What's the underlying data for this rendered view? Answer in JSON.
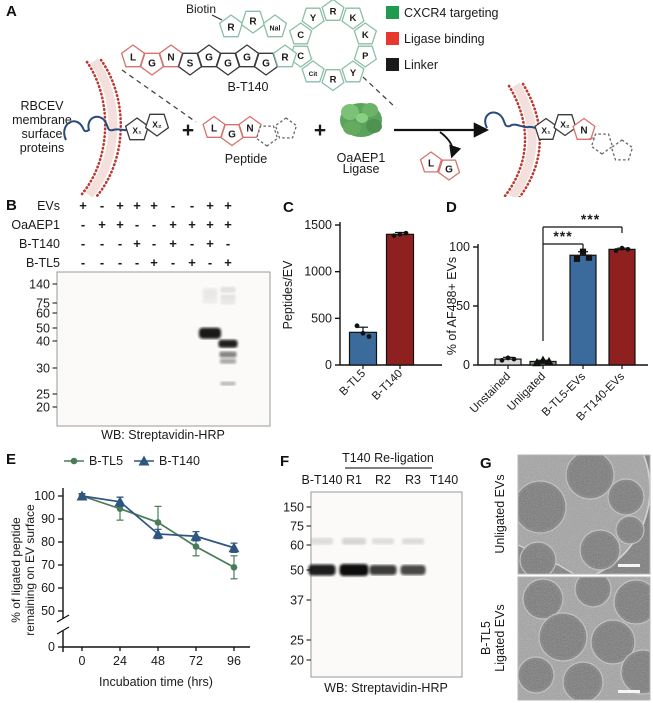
{
  "colors": {
    "accent_green": "#1e9b4d",
    "accent_red": "#e8372c",
    "accent_black": "#1a1a1a",
    "bar_blue": "#3a6b9c",
    "bar_dark_red": "#8e2020",
    "bar_gray": "#d8d8d8",
    "bar_olive": "#7a9b6e",
    "line_green": "#4a7c59",
    "line_blue": "#2f5580",
    "membrane_red": "#bb3a31",
    "protein_blue": "#2b4a7d",
    "pent": {
      "green": {
        "stroke": "#8bbfa6",
        "text": "#1e9b4d"
      },
      "red": {
        "stroke": "#d4736c",
        "text": "#e0352b"
      },
      "black": {
        "stroke": "#3a3a3a",
        "text": "#1a1a1a"
      }
    }
  },
  "panelA": {
    "label": "A",
    "biotin": "Biotin",
    "bt140": "B-T140",
    "membrane_lines": [
      "RBCEV",
      "membrane",
      "surface",
      "proteins"
    ],
    "peptide": "Peptide",
    "ligase_lines": [
      "OaAEP1",
      "Ligase"
    ],
    "plus": "+",
    "legend": [
      {
        "color": "#1e9b4d",
        "label": "CXCR4 targeting"
      },
      {
        "color": "#e8372c",
        "label": "Ligase binding"
      },
      {
        "color": "#1a1a1a",
        "label": "Linker"
      }
    ],
    "top_chain": [
      {
        "t": "R",
        "c": "green"
      },
      {
        "t": "R",
        "c": "green"
      },
      {
        "t": "Nal",
        "c": "green"
      }
    ],
    "linear_chain": [
      {
        "t": "L",
        "c": "red"
      },
      {
        "t": "G",
        "c": "red"
      },
      {
        "t": "N",
        "c": "red"
      },
      {
        "t": "S",
        "c": "black"
      },
      {
        "t": "G",
        "c": "black"
      },
      {
        "t": "G",
        "c": "black"
      },
      {
        "t": "G",
        "c": "black"
      },
      {
        "t": "G",
        "c": "black"
      },
      {
        "t": "R",
        "c": "green"
      }
    ],
    "ring": [
      "C",
      "Y",
      "R",
      "K",
      "K",
      "P",
      "Y",
      "R",
      "Cit",
      "C"
    ],
    "substrate_protein": [
      "X₁",
      "X₂"
    ],
    "peptide_chain": [
      {
        "t": "L",
        "c": "red"
      },
      {
        "t": "G",
        "c": "red"
      },
      {
        "t": "N",
        "c": "red"
      }
    ],
    "released": [
      {
        "t": "L",
        "c": "red"
      },
      {
        "t": "G",
        "c": "red"
      }
    ],
    "product_chain": [
      {
        "t": "X₁",
        "c": "black"
      },
      {
        "t": "X₂",
        "c": "black"
      },
      {
        "t": "N",
        "c": "red"
      }
    ]
  },
  "panelB": {
    "label": "B",
    "rows": [
      {
        "name": "EVs",
        "signs": [
          "+",
          "-",
          "+",
          "+",
          "+",
          "-",
          "-",
          "+",
          "+"
        ]
      },
      {
        "name": "OaAEP1",
        "signs": [
          "-",
          "+",
          "+",
          "-",
          "-",
          "+",
          "+",
          "+",
          "+"
        ]
      },
      {
        "name": "B-T140",
        "signs": [
          "-",
          "-",
          "-",
          "+",
          "-",
          "+",
          "-",
          "+",
          "-"
        ]
      },
      {
        "name": "B-TL5",
        "signs": [
          "-",
          "-",
          "-",
          "-",
          "+",
          "-",
          "+",
          "-",
          "+"
        ]
      }
    ],
    "mw": [
      "140",
      "75",
      "60",
      "50",
      "40",
      "30",
      "25",
      "20"
    ],
    "bands": [
      {
        "lane": 7,
        "kda": 46,
        "w": 22,
        "h": 11,
        "o": 0.95
      },
      {
        "lane": 7,
        "kda": 110,
        "w": 15,
        "h": 9,
        "o": 0.07
      },
      {
        "lane": 7,
        "kda": 85,
        "w": 15,
        "h": 7,
        "o": 0.06
      },
      {
        "lane": 8,
        "kda": 39,
        "w": 19,
        "h": 8,
        "o": 0.92
      },
      {
        "lane": 8,
        "kda": 35,
        "w": 17,
        "h": 6,
        "o": 0.5
      },
      {
        "lane": 8,
        "kda": 32.5,
        "w": 16,
        "h": 5,
        "o": 0.35
      },
      {
        "lane": 8,
        "kda": 27,
        "w": 15,
        "h": 4,
        "o": 0.28
      },
      {
        "lane": 8,
        "kda": 120,
        "w": 15,
        "h": 6,
        "o": 0.1
      },
      {
        "lane": 8,
        "kda": 95,
        "w": 15,
        "h": 5,
        "o": 0.1
      },
      {
        "lane": 8,
        "kda": 78,
        "w": 15,
        "h": 5,
        "o": 0.08
      }
    ],
    "caption": "WB: Streptavidin-HRP"
  },
  "chart_data": [
    {
      "panel_label": "C",
      "type": "bar",
      "title": "",
      "ylabel": "Peptides/EV",
      "categories": [
        "B-TL5",
        "B-T140"
      ],
      "values": [
        350,
        1400
      ],
      "errors": [
        55,
        20
      ],
      "points": [
        [
          420,
          340,
          305
        ],
        [
          1385,
          1400,
          1412
        ]
      ],
      "point_markers": [
        "circle",
        "circle"
      ],
      "colors": [
        "#3a6b9c",
        "#8e2020"
      ],
      "ylim": [
        0,
        1500
      ],
      "yticks": [
        0,
        500,
        1000,
        1500
      ],
      "grid": false
    },
    {
      "panel_label": "D",
      "type": "bar",
      "title": "",
      "ylabel": "% of AF488+ EVs",
      "categories": [
        "Unstained",
        "Unligated",
        "B-TL5-EVs",
        "B-T140-EVs"
      ],
      "values": [
        5,
        3,
        93,
        98
      ],
      "errors": [
        1.5,
        1,
        3,
        1
      ],
      "points": [
        [
          4,
          6,
          5
        ],
        [
          2,
          4,
          3
        ],
        [
          90,
          96,
          91
        ],
        [
          97,
          99,
          98
        ]
      ],
      "point_markers": [
        "circle",
        "triangle",
        "square",
        "circle"
      ],
      "colors": [
        "#d8d8d8",
        "#7a9b6e",
        "#3a6b9c",
        "#8e2020"
      ],
      "ylim": [
        0,
        100
      ],
      "yticks": [
        0,
        50,
        100
      ],
      "grid": false,
      "significance": [
        {
          "from": 1,
          "to": 2,
          "label": "***"
        },
        {
          "from": 1,
          "to": 3,
          "label": "***"
        }
      ]
    },
    {
      "panel_label": "E",
      "type": "line",
      "xlabel": "Incubation time (hrs)",
      "ylabel_lines": [
        "% of ligated peptide",
        "remaining on EV surface"
      ],
      "x": [
        0,
        24,
        48,
        72,
        96
      ],
      "series": [
        {
          "name": "B-TL5",
          "marker": "circle",
          "color": "#4a7c59",
          "values": [
            100,
            94.5,
            88.5,
            78,
            69
          ],
          "errors": [
            1,
            5,
            7,
            4,
            5
          ]
        },
        {
          "name": "B-T140",
          "marker": "triangle",
          "color": "#2f5580",
          "values": [
            100,
            97.5,
            83.5,
            82.5,
            77.5
          ],
          "errors": [
            1,
            2,
            2,
            2,
            2
          ]
        }
      ],
      "yticks": [
        0,
        50,
        60,
        70,
        80,
        90,
        100
      ],
      "ylim": [
        0,
        105
      ],
      "axis_break": true,
      "legend_position": "top",
      "grid": false
    }
  ],
  "panelF": {
    "label": "F",
    "title": "T140 Re-ligation",
    "lanes": [
      "B-T140",
      "R1",
      "R2",
      "R3",
      "T140"
    ],
    "mw": [
      "150",
      "75",
      "60",
      "50",
      "37",
      "25",
      "20"
    ],
    "bands": [
      {
        "lane": 0,
        "kda": 50,
        "w": 27,
        "h": 11,
        "o": 0.93
      },
      {
        "lane": 1,
        "kda": 50,
        "w": 29,
        "h": 12,
        "o": 1
      },
      {
        "lane": 2,
        "kda": 50,
        "w": 27,
        "h": 10,
        "o": 0.8
      },
      {
        "lane": 3,
        "kda": 50,
        "w": 25,
        "h": 10,
        "o": 0.75
      },
      {
        "lane": 0,
        "kda": 63,
        "w": 22,
        "h": 7,
        "o": 0.12
      },
      {
        "lane": 1,
        "kda": 63,
        "w": 24,
        "h": 7,
        "o": 0.15
      },
      {
        "lane": 2,
        "kda": 63,
        "w": 22,
        "h": 6,
        "o": 0.12
      },
      {
        "lane": 3,
        "kda": 63,
        "w": 22,
        "h": 6,
        "o": 0.13
      }
    ],
    "caption": "WB: Streptavidin-HRP"
  },
  "panelG": {
    "label": "G",
    "images": [
      {
        "label_lines": [
          "Unligated EVs"
        ]
      },
      {
        "label_lines": [
          "B-TL5",
          "Ligated EVs"
        ]
      }
    ]
  }
}
